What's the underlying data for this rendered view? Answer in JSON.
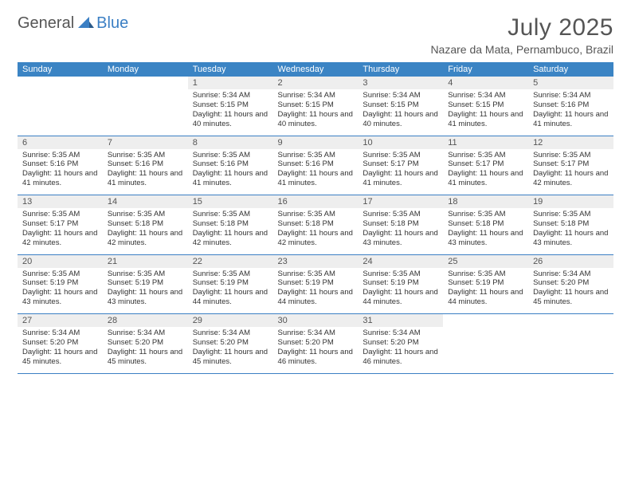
{
  "logo": {
    "general": "General",
    "blue": "Blue"
  },
  "title": "July 2025",
  "location": "Nazare da Mata, Pernambuco, Brazil",
  "header_color": "#3b84c4",
  "border_color": "#3b7fc4",
  "daynum_bg": "#eeeeee",
  "days_of_week": [
    "Sunday",
    "Monday",
    "Tuesday",
    "Wednesday",
    "Thursday",
    "Friday",
    "Saturday"
  ],
  "weeks": [
    [
      null,
      null,
      {
        "n": "1",
        "sr": "5:34 AM",
        "ss": "5:15 PM",
        "dl": "11 hours and 40 minutes."
      },
      {
        "n": "2",
        "sr": "5:34 AM",
        "ss": "5:15 PM",
        "dl": "11 hours and 40 minutes."
      },
      {
        "n": "3",
        "sr": "5:34 AM",
        "ss": "5:15 PM",
        "dl": "11 hours and 40 minutes."
      },
      {
        "n": "4",
        "sr": "5:34 AM",
        "ss": "5:15 PM",
        "dl": "11 hours and 41 minutes."
      },
      {
        "n": "5",
        "sr": "5:34 AM",
        "ss": "5:16 PM",
        "dl": "11 hours and 41 minutes."
      }
    ],
    [
      {
        "n": "6",
        "sr": "5:35 AM",
        "ss": "5:16 PM",
        "dl": "11 hours and 41 minutes."
      },
      {
        "n": "7",
        "sr": "5:35 AM",
        "ss": "5:16 PM",
        "dl": "11 hours and 41 minutes."
      },
      {
        "n": "8",
        "sr": "5:35 AM",
        "ss": "5:16 PM",
        "dl": "11 hours and 41 minutes."
      },
      {
        "n": "9",
        "sr": "5:35 AM",
        "ss": "5:16 PM",
        "dl": "11 hours and 41 minutes."
      },
      {
        "n": "10",
        "sr": "5:35 AM",
        "ss": "5:17 PM",
        "dl": "11 hours and 41 minutes."
      },
      {
        "n": "11",
        "sr": "5:35 AM",
        "ss": "5:17 PM",
        "dl": "11 hours and 41 minutes."
      },
      {
        "n": "12",
        "sr": "5:35 AM",
        "ss": "5:17 PM",
        "dl": "11 hours and 42 minutes."
      }
    ],
    [
      {
        "n": "13",
        "sr": "5:35 AM",
        "ss": "5:17 PM",
        "dl": "11 hours and 42 minutes."
      },
      {
        "n": "14",
        "sr": "5:35 AM",
        "ss": "5:18 PM",
        "dl": "11 hours and 42 minutes."
      },
      {
        "n": "15",
        "sr": "5:35 AM",
        "ss": "5:18 PM",
        "dl": "11 hours and 42 minutes."
      },
      {
        "n": "16",
        "sr": "5:35 AM",
        "ss": "5:18 PM",
        "dl": "11 hours and 42 minutes."
      },
      {
        "n": "17",
        "sr": "5:35 AM",
        "ss": "5:18 PM",
        "dl": "11 hours and 43 minutes."
      },
      {
        "n": "18",
        "sr": "5:35 AM",
        "ss": "5:18 PM",
        "dl": "11 hours and 43 minutes."
      },
      {
        "n": "19",
        "sr": "5:35 AM",
        "ss": "5:18 PM",
        "dl": "11 hours and 43 minutes."
      }
    ],
    [
      {
        "n": "20",
        "sr": "5:35 AM",
        "ss": "5:19 PM",
        "dl": "11 hours and 43 minutes."
      },
      {
        "n": "21",
        "sr": "5:35 AM",
        "ss": "5:19 PM",
        "dl": "11 hours and 43 minutes."
      },
      {
        "n": "22",
        "sr": "5:35 AM",
        "ss": "5:19 PM",
        "dl": "11 hours and 44 minutes."
      },
      {
        "n": "23",
        "sr": "5:35 AM",
        "ss": "5:19 PM",
        "dl": "11 hours and 44 minutes."
      },
      {
        "n": "24",
        "sr": "5:35 AM",
        "ss": "5:19 PM",
        "dl": "11 hours and 44 minutes."
      },
      {
        "n": "25",
        "sr": "5:35 AM",
        "ss": "5:19 PM",
        "dl": "11 hours and 44 minutes."
      },
      {
        "n": "26",
        "sr": "5:34 AM",
        "ss": "5:20 PM",
        "dl": "11 hours and 45 minutes."
      }
    ],
    [
      {
        "n": "27",
        "sr": "5:34 AM",
        "ss": "5:20 PM",
        "dl": "11 hours and 45 minutes."
      },
      {
        "n": "28",
        "sr": "5:34 AM",
        "ss": "5:20 PM",
        "dl": "11 hours and 45 minutes."
      },
      {
        "n": "29",
        "sr": "5:34 AM",
        "ss": "5:20 PM",
        "dl": "11 hours and 45 minutes."
      },
      {
        "n": "30",
        "sr": "5:34 AM",
        "ss": "5:20 PM",
        "dl": "11 hours and 46 minutes."
      },
      {
        "n": "31",
        "sr": "5:34 AM",
        "ss": "5:20 PM",
        "dl": "11 hours and 46 minutes."
      },
      null,
      null
    ]
  ],
  "labels": {
    "sunrise": "Sunrise: ",
    "sunset": "Sunset: ",
    "daylight": "Daylight: "
  }
}
